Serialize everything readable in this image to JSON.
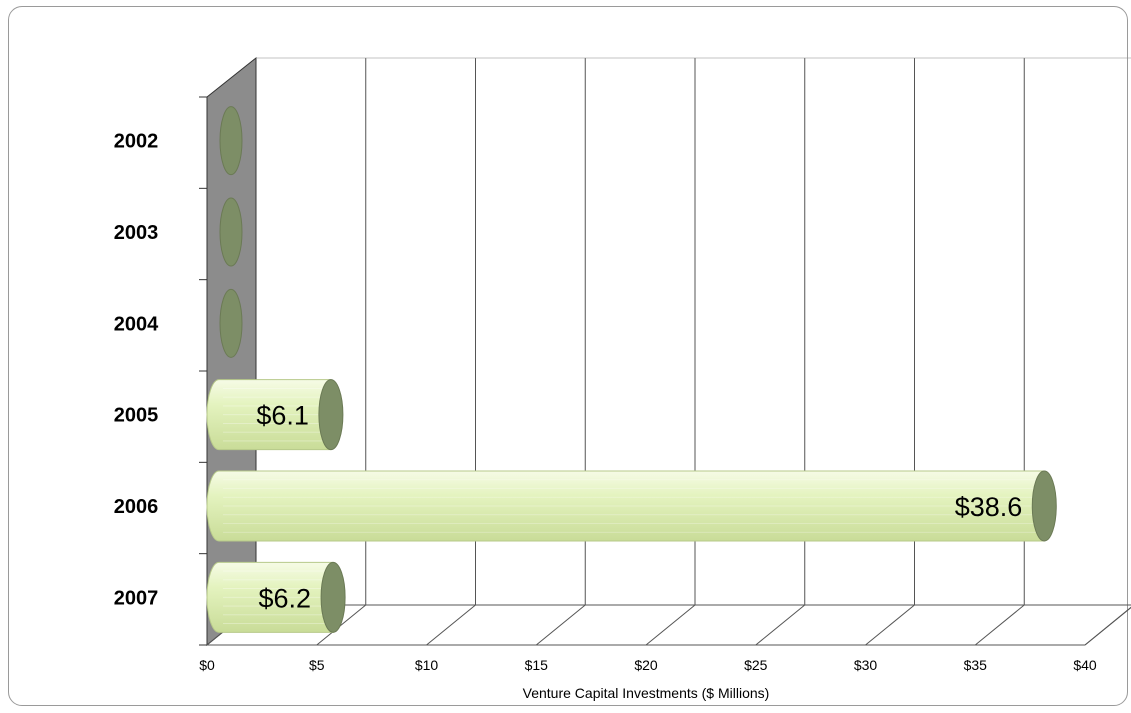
{
  "chart_data": {
    "type": "bar",
    "orientation": "horizontal",
    "style": "3d-cylinder",
    "categories": [
      "2002",
      "2003",
      "2004",
      "2005",
      "2006",
      "2007"
    ],
    "values": [
      0,
      0,
      0,
      6.1,
      38.6,
      6.2
    ],
    "data_labels": [
      "",
      "",
      "",
      "$6.1",
      "$38.6",
      "$6.2"
    ],
    "x_ticks": [
      "$0",
      "$5",
      "$10",
      "$15",
      "$20",
      "$25",
      "$30",
      "$35",
      "$40"
    ],
    "xlim": [
      0,
      40
    ],
    "xlabel": "Venture Capital Investments ($ Millions)",
    "ylabel": "",
    "title": "",
    "grid": true,
    "legend": "none",
    "colors": {
      "bar_body": "#e4f3bf",
      "bar_cap": "#7d8e66",
      "wall": "#8c8c8c",
      "grid": "#555555"
    }
  }
}
